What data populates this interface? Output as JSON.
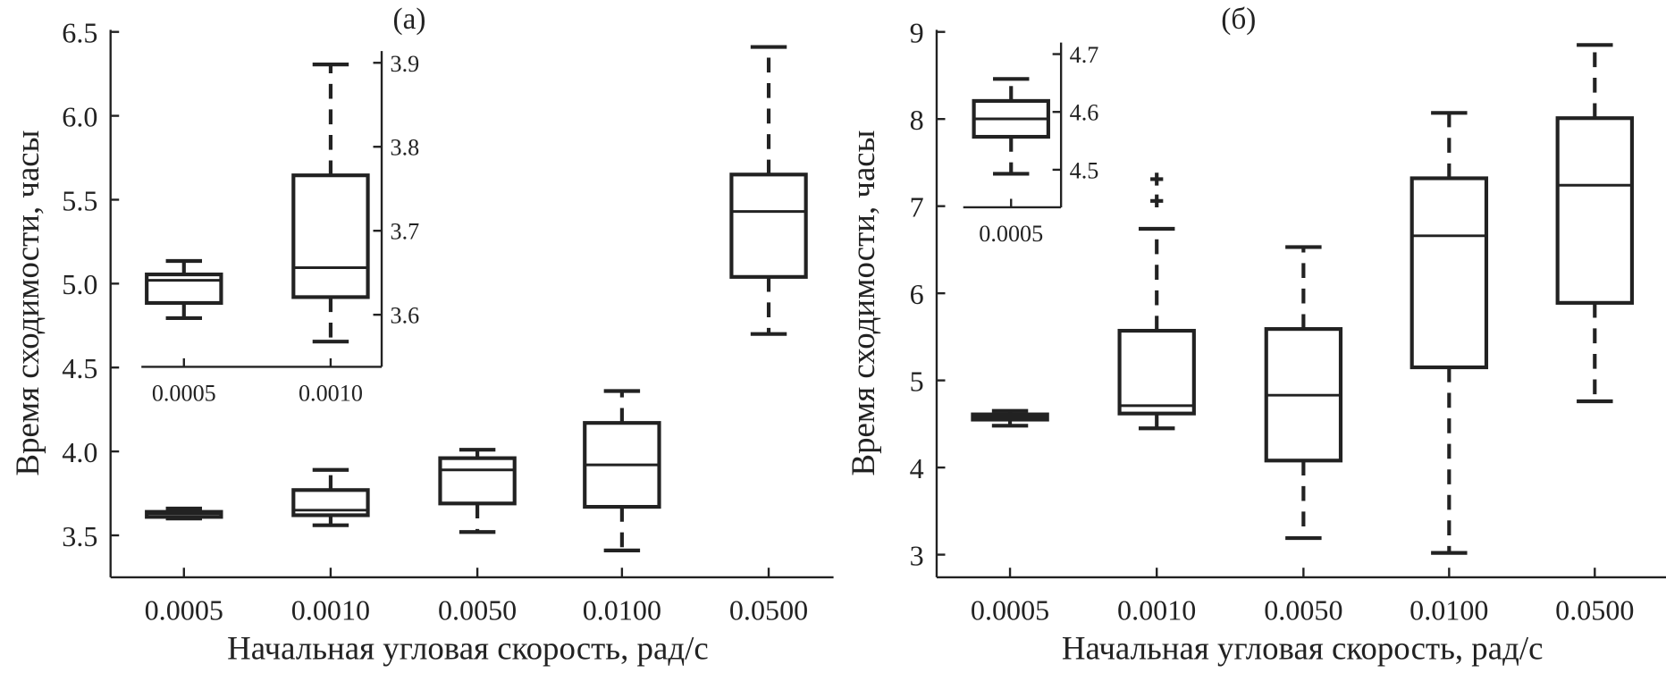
{
  "chart_data": [
    {
      "type": "boxplot",
      "panel_label": "(a)",
      "xlabel": "Начальная угловая скорость, рад/с",
      "ylabel": "Время сходимости, часы",
      "categories": [
        "0.0005",
        "0.0010",
        "0.0050",
        "0.0100",
        "0.0500"
      ],
      "ylim": [
        3.25,
        6.5
      ],
      "yticks": [
        "3.5",
        "4.0",
        "4.5",
        "5.0",
        "5.5",
        "6.0",
        "6.5"
      ],
      "boxes": [
        {
          "whisker_low": 3.6,
          "q1": 3.61,
          "median": 3.63,
          "q3": 3.64,
          "whisker_high": 3.66,
          "outliers": []
        },
        {
          "whisker_low": 3.56,
          "q1": 3.62,
          "median": 3.65,
          "q3": 3.77,
          "whisker_high": 3.89,
          "outliers": []
        },
        {
          "whisker_low": 3.52,
          "q1": 3.69,
          "median": 3.89,
          "q3": 3.96,
          "whisker_high": 4.01,
          "outliers": []
        },
        {
          "whisker_low": 3.41,
          "q1": 3.67,
          "median": 3.92,
          "q3": 4.17,
          "whisker_high": 4.36,
          "outliers": []
        },
        {
          "whisker_low": 4.7,
          "q1": 5.04,
          "median": 5.43,
          "q3": 5.65,
          "whisker_high": 6.41,
          "outliers": []
        }
      ],
      "inset": {
        "categories": [
          "0.0005",
          "0.0010"
        ],
        "ylim": [
          3.538,
          3.914
        ],
        "yticks": [
          "3.6",
          "3.7",
          "3.8",
          "3.9"
        ],
        "boxes": [
          {
            "whisker_low": 3.596,
            "q1": 3.614,
            "median": 3.641,
            "q3": 3.648,
            "whisker_high": 3.664,
            "outliers": []
          },
          {
            "whisker_low": 3.568,
            "q1": 3.621,
            "median": 3.656,
            "q3": 3.766,
            "whisker_high": 3.898,
            "outliers": []
          }
        ]
      }
    },
    {
      "type": "boxplot",
      "panel_label": "(б)",
      "xlabel": "Начальная угловая скорость, рад/с",
      "ylabel": "Время сходимости, часы",
      "categories": [
        "0.0005",
        "0.0010",
        "0.0050",
        "0.0100",
        "0.0500"
      ],
      "ylim": [
        2.74,
        9
      ],
      "yticks": [
        "3",
        "4",
        "5",
        "6",
        "7",
        "8",
        "9"
      ],
      "boxes": [
        {
          "whisker_low": 4.48,
          "q1": 4.55,
          "median": 4.58,
          "q3": 4.61,
          "whisker_high": 4.65,
          "outliers": []
        },
        {
          "whisker_low": 4.45,
          "q1": 4.62,
          "median": 4.71,
          "q3": 5.57,
          "whisker_high": 6.74,
          "outliers": [
            7.06,
            7.31
          ]
        },
        {
          "whisker_low": 3.19,
          "q1": 4.08,
          "median": 4.83,
          "q3": 5.59,
          "whisker_high": 6.53,
          "outliers": []
        },
        {
          "whisker_low": 3.02,
          "q1": 5.15,
          "median": 6.66,
          "q3": 7.32,
          "whisker_high": 8.07,
          "outliers": []
        },
        {
          "whisker_low": 4.76,
          "q1": 5.89,
          "median": 7.24,
          "q3": 8.01,
          "whisker_high": 8.85,
          "outliers": []
        }
      ],
      "inset": {
        "categories": [
          "0.0005"
        ],
        "ylim": [
          4.435,
          4.72
        ],
        "yticks": [
          "4.5",
          "4.6",
          "4.7"
        ],
        "boxes": [
          {
            "whisker_low": 4.493,
            "q1": 4.557,
            "median": 4.588,
            "q3": 4.619,
            "whisker_high": 4.657,
            "outliers": []
          }
        ]
      }
    }
  ]
}
